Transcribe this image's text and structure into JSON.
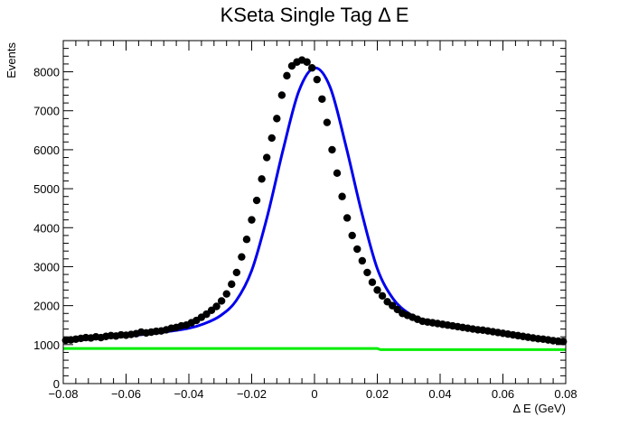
{
  "chart_data": {
    "type": "scatter",
    "title": "KSeta Single Tag Δ E",
    "xlabel": "Δ E (GeV)",
    "ylabel": "Events",
    "xlim": [
      -0.08,
      0.08
    ],
    "ylim": [
      0,
      8800
    ],
    "grid": false,
    "x_ticks": [
      -0.08,
      -0.06,
      -0.04,
      -0.02,
      0,
      0.02,
      0.04,
      0.06,
      0.08
    ],
    "x_tick_labels": [
      "−0.08",
      "−0.06",
      "−0.04",
      "−0.02",
      "0",
      "0.02",
      "0.04",
      "0.06",
      "0.08"
    ],
    "y_ticks": [
      0,
      1000,
      2000,
      3000,
      4000,
      5000,
      6000,
      7000,
      8000
    ],
    "y_tick_labels": [
      "0",
      "1000",
      "2000",
      "3000",
      "4000",
      "5000",
      "6000",
      "7000",
      "8000"
    ],
    "colors": {
      "data": "#000000",
      "fit": "#0000ee",
      "background": "#00ee00"
    },
    "series": [
      {
        "kind": "points",
        "x": [
          -0.0792,
          -0.0776,
          -0.076,
          -0.0744,
          -0.0728,
          -0.0712,
          -0.0696,
          -0.068,
          -0.0664,
          -0.0648,
          -0.0632,
          -0.0616,
          -0.06,
          -0.0584,
          -0.0568,
          -0.0552,
          -0.0536,
          -0.052,
          -0.0504,
          -0.0488,
          -0.0472,
          -0.0456,
          -0.044,
          -0.0424,
          -0.0408,
          -0.0392,
          -0.0376,
          -0.036,
          -0.0344,
          -0.0328,
          -0.0312,
          -0.0296,
          -0.028,
          -0.0264,
          -0.0248,
          -0.0232,
          -0.0216,
          -0.02,
          -0.0184,
          -0.0168,
          -0.0152,
          -0.0136,
          -0.012,
          -0.0104,
          -0.0088,
          -0.0072,
          -0.0056,
          -0.004,
          -0.0024,
          -0.0008,
          0.0008,
          0.0024,
          0.004,
          0.0056,
          0.0072,
          0.0088,
          0.0104,
          0.012,
          0.0136,
          0.0152,
          0.0168,
          0.0184,
          0.02,
          0.0216,
          0.0232,
          0.0248,
          0.0264,
          0.028,
          0.0296,
          0.0312,
          0.0328,
          0.0344,
          0.036,
          0.0376,
          0.0392,
          0.0408,
          0.0424,
          0.044,
          0.0456,
          0.0472,
          0.0488,
          0.0504,
          0.052,
          0.0536,
          0.0552,
          0.0568,
          0.0584,
          0.06,
          0.0616,
          0.0632,
          0.0648,
          0.0664,
          0.068,
          0.0696,
          0.0712,
          0.0728,
          0.0744,
          0.076,
          0.0776,
          0.0792
        ],
        "y": [
          1110,
          1120,
          1140,
          1160,
          1180,
          1170,
          1200,
          1180,
          1210,
          1230,
          1220,
          1250,
          1240,
          1260,
          1280,
          1320,
          1300,
          1320,
          1340,
          1350,
          1380,
          1420,
          1440,
          1480,
          1500,
          1560,
          1620,
          1700,
          1780,
          1880,
          1980,
          2120,
          2300,
          2550,
          2850,
          3250,
          3700,
          4200,
          4700,
          5250,
          5800,
          6300,
          6800,
          7400,
          7900,
          8150,
          8250,
          8300,
          8250,
          8100,
          7800,
          7300,
          6700,
          6000,
          5400,
          4800,
          4250,
          3800,
          3450,
          3150,
          2850,
          2600,
          2400,
          2250,
          2100,
          2000,
          1900,
          1800,
          1750,
          1700,
          1650,
          1600,
          1580,
          1560,
          1540,
          1520,
          1500,
          1480,
          1460,
          1440,
          1420,
          1400,
          1380,
          1370,
          1350,
          1330,
          1310,
          1290,
          1270,
          1250,
          1230,
          1210,
          1190,
          1170,
          1150,
          1140,
          1120,
          1100,
          1090,
          1080
        ]
      },
      {
        "kind": "fit-curve",
        "x": [
          -0.08,
          -0.07,
          -0.06,
          -0.05,
          -0.04,
          -0.035,
          -0.03,
          -0.025,
          -0.02,
          -0.015,
          -0.01,
          -0.005,
          0,
          0.005,
          0.01,
          0.015,
          0.02,
          0.025,
          0.03,
          0.035,
          0.04,
          0.05,
          0.06,
          0.07,
          0.08
        ],
        "y": [
          1080,
          1150,
          1220,
          1300,
          1420,
          1540,
          1740,
          2120,
          2900,
          4300,
          6000,
          7500,
          8100,
          7600,
          6100,
          4400,
          2950,
          2180,
          1800,
          1620,
          1520,
          1420,
          1300,
          1170,
          1060
        ]
      },
      {
        "kind": "background-curve",
        "x": [
          -0.08,
          0.02,
          0.021,
          0.08
        ],
        "y": [
          900,
          900,
          870,
          870
        ]
      }
    ]
  }
}
